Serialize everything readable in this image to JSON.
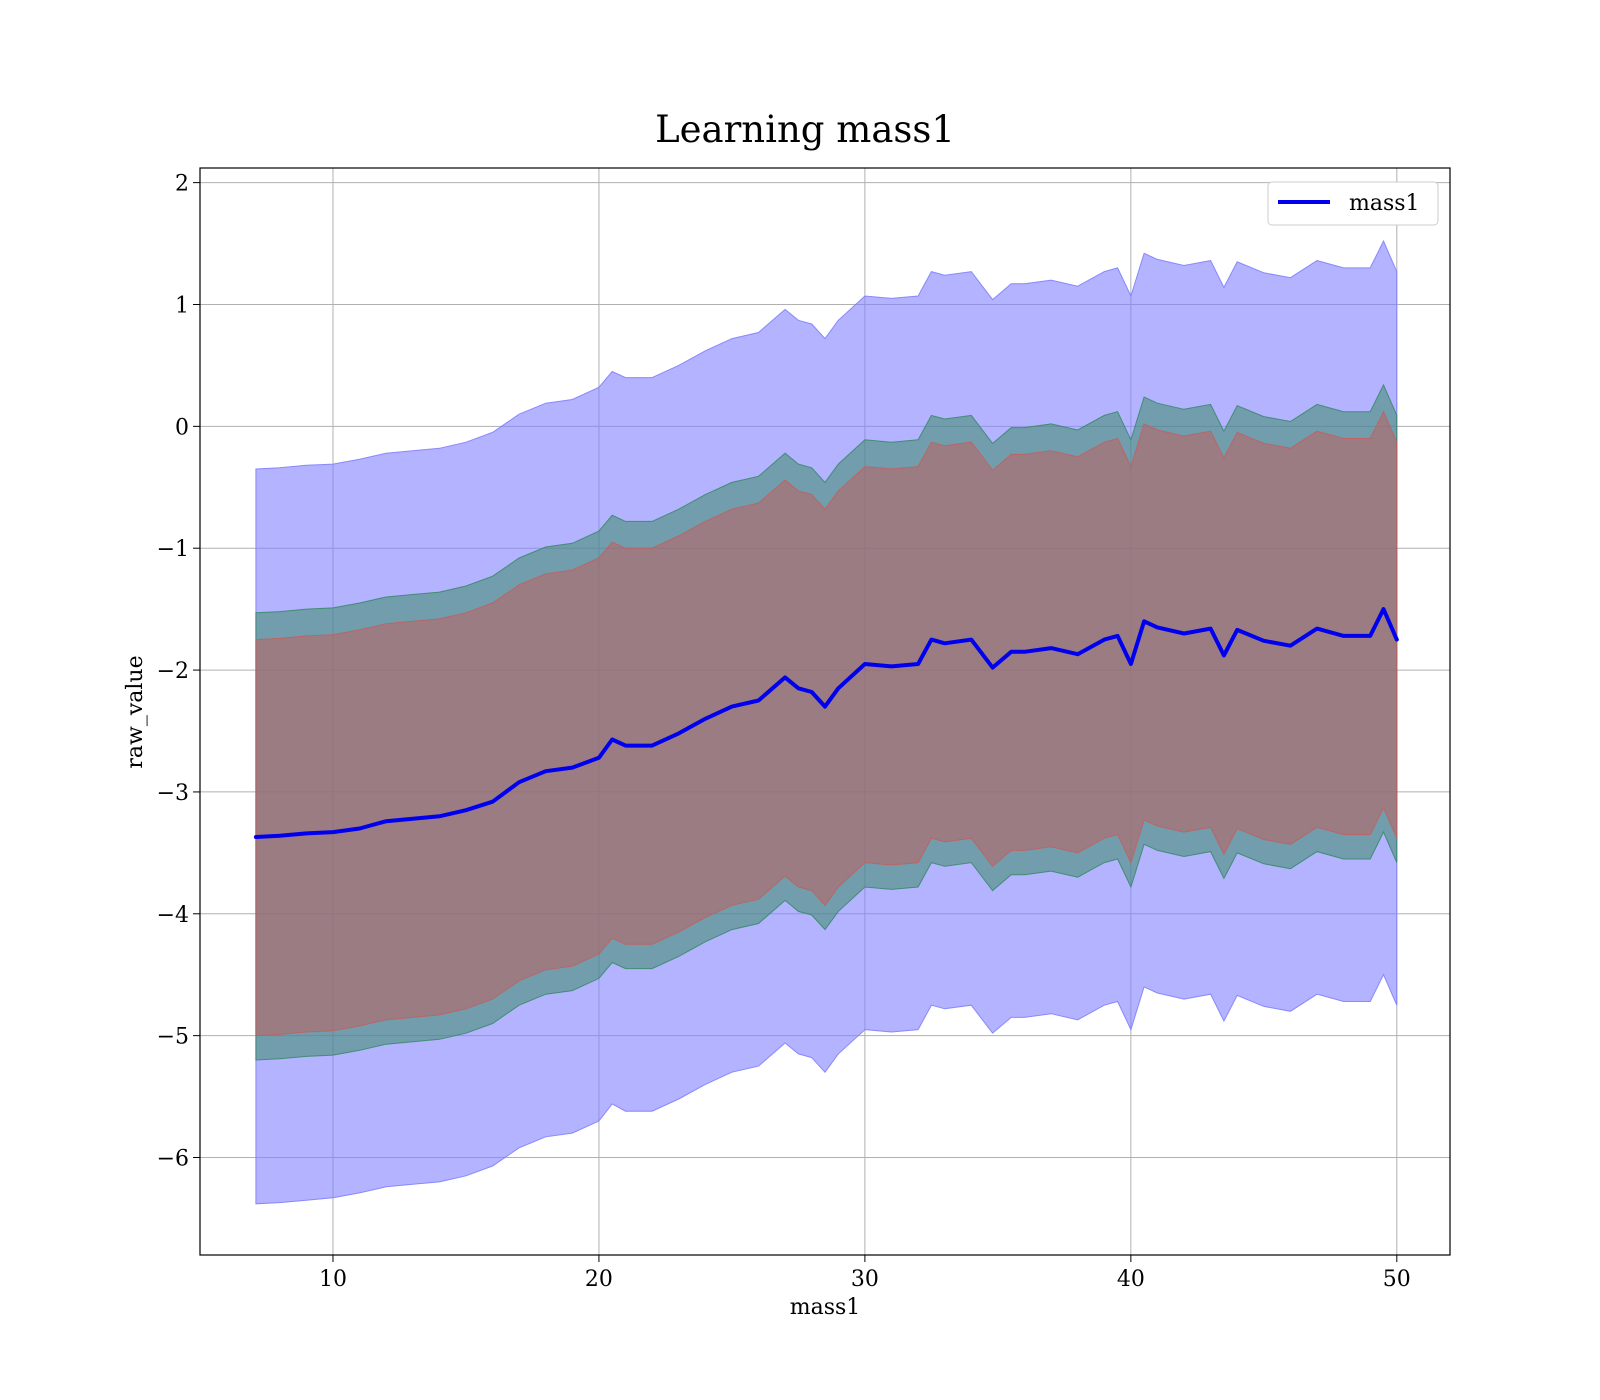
{
  "chart_data": {
    "type": "area",
    "title": "Learning mass1",
    "xlabel": "mass1",
    "ylabel": "raw_value",
    "xlim": [
      5,
      52
    ],
    "ylim": [
      -6.8,
      2.12
    ],
    "xticks": [
      10,
      20,
      30,
      40,
      50
    ],
    "xtick_labels": [
      "10",
      "20",
      "30",
      "40",
      "50"
    ],
    "yticks": [
      2,
      1,
      0,
      -1,
      -2,
      -3,
      -4,
      -5,
      -6
    ],
    "ytick_labels": [
      "2",
      "1",
      "0",
      "−1",
      "−2",
      "−3",
      "−4",
      "−5",
      "−6"
    ],
    "grid": true,
    "legend": {
      "placement": "top-right",
      "entries": [
        "mass1"
      ]
    },
    "x": [
      7.1,
      8,
      9,
      10,
      11,
      12,
      13,
      14,
      15,
      16,
      17,
      18,
      19,
      20,
      20.5,
      21,
      22,
      23,
      24,
      25,
      26,
      27,
      27.5,
      28,
      28.5,
      29,
      30,
      31,
      32,
      32.5,
      33,
      34,
      34.8,
      35.5,
      36,
      37,
      38,
      39,
      39.5,
      40,
      40.5,
      41,
      42,
      43,
      43.5,
      44,
      45,
      46,
      47,
      48,
      49,
      49.5,
      50
    ],
    "series": [
      {
        "name": "mass1",
        "color": "#0000ee",
        "values": [
          -3.37,
          -3.36,
          -3.34,
          -3.33,
          -3.3,
          -3.24,
          -3.22,
          -3.2,
          -3.15,
          -3.08,
          -2.92,
          -2.83,
          -2.8,
          -2.72,
          -2.57,
          -2.62,
          -2.62,
          -2.52,
          -2.4,
          -2.3,
          -2.25,
          -2.06,
          -2.15,
          -2.18,
          -2.3,
          -2.15,
          -1.95,
          -1.97,
          -1.95,
          -1.75,
          -1.78,
          -1.75,
          -1.98,
          -1.85,
          -1.85,
          -1.82,
          -1.87,
          -1.75,
          -1.72,
          -1.95,
          -1.6,
          -1.65,
          -1.7,
          -1.66,
          -1.88,
          -1.67,
          -1.76,
          -1.8,
          -1.66,
          -1.72,
          -1.72,
          -1.5,
          -1.75
        ]
      }
    ],
    "bands": [
      {
        "color": "#8080ff",
        "opacity": 0.6,
        "lower": [
          -6.38,
          -6.37,
          -6.35,
          -6.33,
          -6.29,
          -6.24,
          -6.22,
          -6.2,
          -6.15,
          -6.07,
          -5.92,
          -5.83,
          -5.8,
          -5.7,
          -5.56,
          -5.62,
          -5.62,
          -5.52,
          -5.4,
          -5.3,
          -5.25,
          -5.06,
          -5.15,
          -5.18,
          -5.3,
          -5.15,
          -4.95,
          -4.97,
          -4.95,
          -4.75,
          -4.78,
          -4.75,
          -4.98,
          -4.85,
          -4.85,
          -4.82,
          -4.87,
          -4.75,
          -4.72,
          -4.95,
          -4.6,
          -4.65,
          -4.7,
          -4.66,
          -4.88,
          -4.67,
          -4.76,
          -4.8,
          -4.66,
          -4.72,
          -4.72,
          -4.5,
          -4.75
        ],
        "upper": [
          -0.35,
          -0.34,
          -0.32,
          -0.31,
          -0.27,
          -0.22,
          -0.2,
          -0.18,
          -0.13,
          -0.05,
          0.1,
          0.19,
          0.22,
          0.32,
          0.45,
          0.4,
          0.4,
          0.5,
          0.62,
          0.72,
          0.77,
          0.96,
          0.87,
          0.84,
          0.72,
          0.87,
          1.07,
          1.05,
          1.07,
          1.27,
          1.24,
          1.27,
          1.04,
          1.17,
          1.17,
          1.2,
          1.15,
          1.27,
          1.3,
          1.07,
          1.42,
          1.37,
          1.32,
          1.36,
          1.14,
          1.35,
          1.26,
          1.22,
          1.36,
          1.3,
          1.3,
          1.52,
          1.27
        ]
      },
      {
        "color": "#3a8a6a",
        "opacity": 0.55,
        "lower": [
          -5.2,
          -5.19,
          -5.17,
          -5.16,
          -5.12,
          -5.07,
          -5.05,
          -5.03,
          -4.98,
          -4.9,
          -4.75,
          -4.66,
          -4.63,
          -4.53,
          -4.4,
          -4.45,
          -4.45,
          -4.35,
          -4.23,
          -4.13,
          -4.08,
          -3.89,
          -3.98,
          -4.01,
          -4.13,
          -3.98,
          -3.78,
          -3.8,
          -3.78,
          -3.58,
          -3.61,
          -3.58,
          -3.81,
          -3.68,
          -3.68,
          -3.65,
          -3.7,
          -3.58,
          -3.55,
          -3.78,
          -3.43,
          -3.48,
          -3.53,
          -3.49,
          -3.71,
          -3.5,
          -3.59,
          -3.63,
          -3.49,
          -3.55,
          -3.55,
          -3.33,
          -3.58
        ],
        "upper": [
          -1.53,
          -1.52,
          -1.5,
          -1.49,
          -1.45,
          -1.4,
          -1.38,
          -1.36,
          -1.31,
          -1.23,
          -1.08,
          -0.99,
          -0.96,
          -0.86,
          -0.73,
          -0.78,
          -0.78,
          -0.68,
          -0.56,
          -0.46,
          -0.41,
          -0.22,
          -0.31,
          -0.34,
          -0.46,
          -0.31,
          -0.11,
          -0.13,
          -0.11,
          0.09,
          0.06,
          0.09,
          -0.14,
          -0.01,
          -0.01,
          0.02,
          -0.03,
          0.09,
          0.12,
          -0.11,
          0.24,
          0.19,
          0.14,
          0.18,
          -0.04,
          0.17,
          0.08,
          0.04,
          0.18,
          0.12,
          0.12,
          0.34,
          0.09
        ]
      },
      {
        "color": "#c06060",
        "opacity": 0.55,
        "lower": [
          -5.0,
          -4.99,
          -4.97,
          -4.96,
          -4.92,
          -4.87,
          -4.85,
          -4.83,
          -4.78,
          -4.7,
          -4.55,
          -4.46,
          -4.43,
          -4.33,
          -4.2,
          -4.25,
          -4.25,
          -4.15,
          -4.03,
          -3.93,
          -3.88,
          -3.69,
          -3.78,
          -3.81,
          -3.93,
          -3.78,
          -3.58,
          -3.6,
          -3.58,
          -3.38,
          -3.41,
          -3.38,
          -3.61,
          -3.48,
          -3.48,
          -3.45,
          -3.5,
          -3.38,
          -3.35,
          -3.58,
          -3.23,
          -3.28,
          -3.33,
          -3.29,
          -3.51,
          -3.3,
          -3.39,
          -3.43,
          -3.29,
          -3.35,
          -3.35,
          -3.13,
          -3.38
        ],
        "upper": [
          -1.75,
          -1.74,
          -1.72,
          -1.71,
          -1.67,
          -1.62,
          -1.6,
          -1.58,
          -1.53,
          -1.45,
          -1.3,
          -1.21,
          -1.18,
          -1.08,
          -0.95,
          -1.0,
          -1.0,
          -0.9,
          -0.78,
          -0.68,
          -0.63,
          -0.44,
          -0.53,
          -0.56,
          -0.68,
          -0.53,
          -0.33,
          -0.35,
          -0.33,
          -0.13,
          -0.16,
          -0.13,
          -0.36,
          -0.23,
          -0.23,
          -0.2,
          -0.25,
          -0.13,
          -0.1,
          -0.33,
          0.02,
          -0.03,
          -0.08,
          -0.04,
          -0.26,
          -0.05,
          -0.14,
          -0.18,
          -0.04,
          -0.1,
          -0.1,
          0.12,
          -0.13
        ]
      }
    ]
  }
}
